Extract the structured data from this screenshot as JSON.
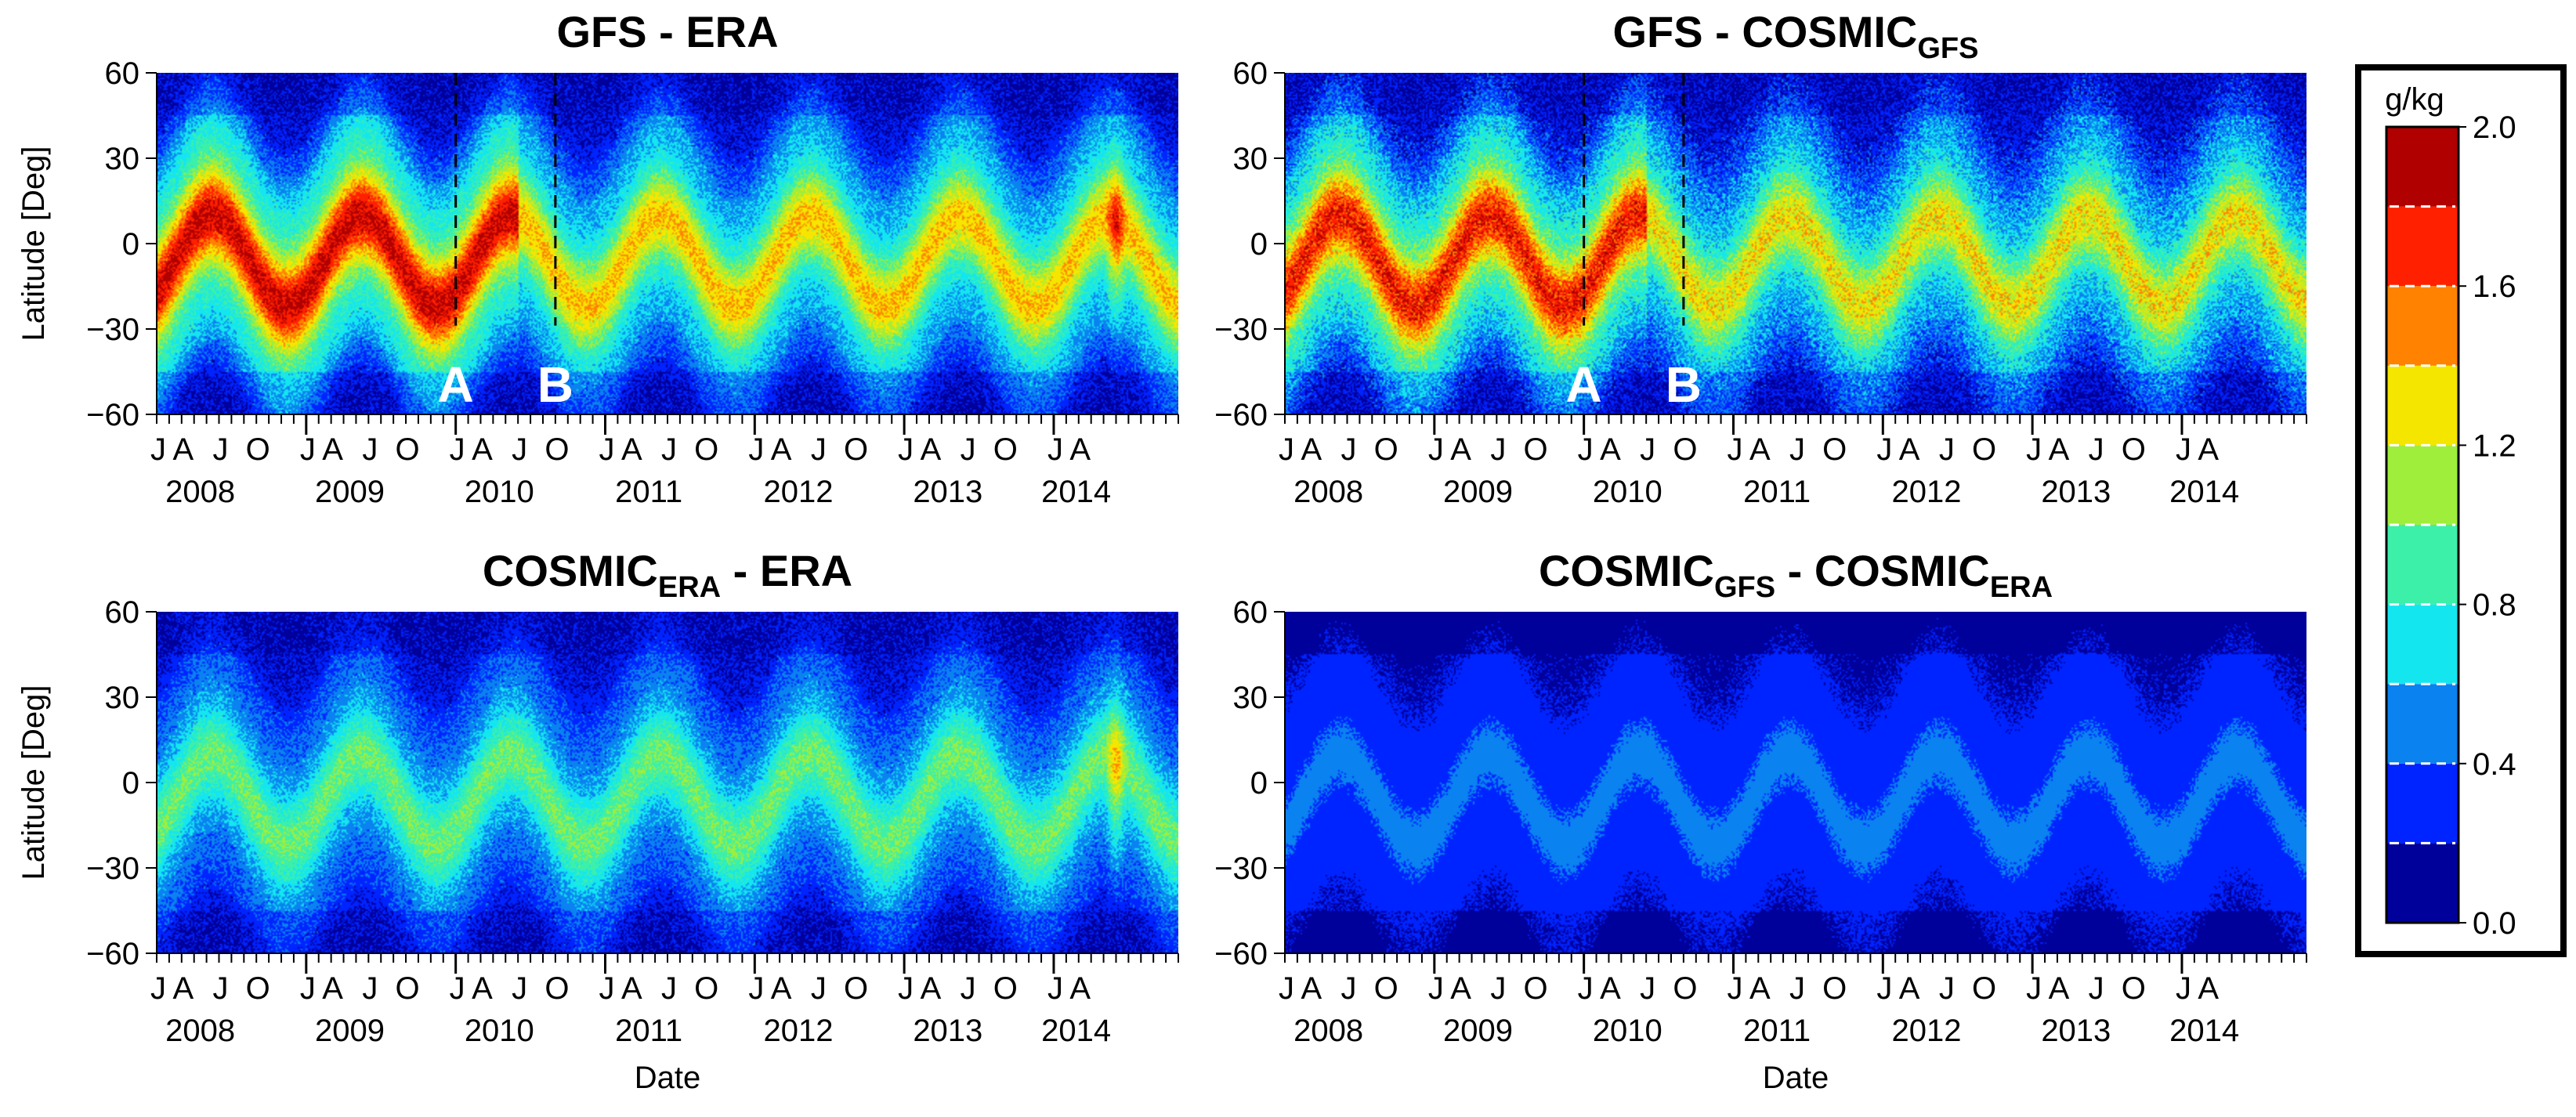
{
  "chart_data": {
    "type": "heatmap",
    "colorbar": {
      "unit": "g/kg",
      "range": [
        0.0,
        2.0
      ],
      "tick_labels": [
        "0.0",
        "0.4",
        "0.8",
        "1.2",
        "1.6",
        "2.0"
      ],
      "levels": [
        0,
        0.2,
        0.4,
        0.6,
        0.8,
        1.0,
        1.2,
        1.4,
        1.6,
        1.8,
        2.0
      ],
      "colors": [
        "#00009a",
        "#0024ff",
        "#0a82f0",
        "#14e6f0",
        "#3cf0aa",
        "#a0ee3c",
        "#f5e600",
        "#ff8200",
        "#ff2000",
        "#b00000"
      ]
    },
    "shared_axes": {
      "ylabel": "Latitude [Deg]",
      "xlabel": "Date",
      "ylim": [
        -60,
        60
      ],
      "yticks": [
        60,
        30,
        0,
        -30,
        -60
      ],
      "ytick_labels": [
        "60",
        "30",
        "0",
        "−30",
        "−60"
      ],
      "xlim_months": [
        0,
        82
      ],
      "xtick_letters": [
        "J",
        "A",
        "J",
        "O",
        "J",
        "A",
        "J",
        "O",
        "J",
        "A",
        "J",
        "O",
        "J",
        "A",
        "J",
        "O",
        "J",
        "A",
        "J",
        "O",
        "J",
        "A",
        "J",
        "O",
        "J",
        "A"
      ],
      "xtick_month_offsets": [
        0,
        2,
        5,
        8,
        12,
        14,
        17,
        20,
        24,
        26,
        29,
        32,
        36,
        38,
        41,
        44,
        48,
        50,
        53,
        56,
        60,
        62,
        65,
        68,
        72,
        74
      ],
      "year_labels": [
        "2008",
        "2009",
        "2010",
        "2011",
        "2012",
        "2013",
        "2014"
      ],
      "year_label_month_offsets": [
        3.5,
        15.5,
        27.5,
        39.5,
        51.5,
        63.5,
        73.8
      ],
      "year_boundary_month_offsets": [
        12,
        24,
        36,
        48,
        60,
        72
      ]
    },
    "panels": [
      {
        "id": "gfs-era",
        "title": "GFS - ERA",
        "title_subscript": "",
        "title_tail": "",
        "title_tail_subscript": "",
        "max_value": 1.85,
        "noise": 0.14,
        "era_change_month": 29,
        "late_anomaly_month": 77,
        "events": [
          {
            "label": "A",
            "month": 24
          },
          {
            "label": "B",
            "month": 32
          }
        ]
      },
      {
        "id": "gfs-cosmic-gfs",
        "title": "GFS - COSMIC",
        "title_subscript": "GFS",
        "title_tail": "",
        "title_tail_subscript": "",
        "max_value": 1.75,
        "noise": 0.2,
        "era_change_month": 29,
        "late_anomaly_month": null,
        "events": [
          {
            "label": "A",
            "month": 24
          },
          {
            "label": "B",
            "month": 32
          }
        ]
      },
      {
        "id": "cosmic-era-era",
        "title": "COSMIC",
        "title_subscript": "ERA",
        "title_tail": " - ERA",
        "title_tail_subscript": "",
        "max_value": 1.0,
        "noise": 0.13,
        "era_change_month": null,
        "late_anomaly_month": 77,
        "events": []
      },
      {
        "id": "cosmic-gfs-cosmic-era",
        "title": "COSMIC",
        "title_subscript": "GFS",
        "title_tail": " - COSMIC",
        "title_tail_subscript": "ERA",
        "max_value": 0.46,
        "noise": 0.04,
        "era_change_month": null,
        "late_anomaly_month": null,
        "events": []
      }
    ]
  }
}
